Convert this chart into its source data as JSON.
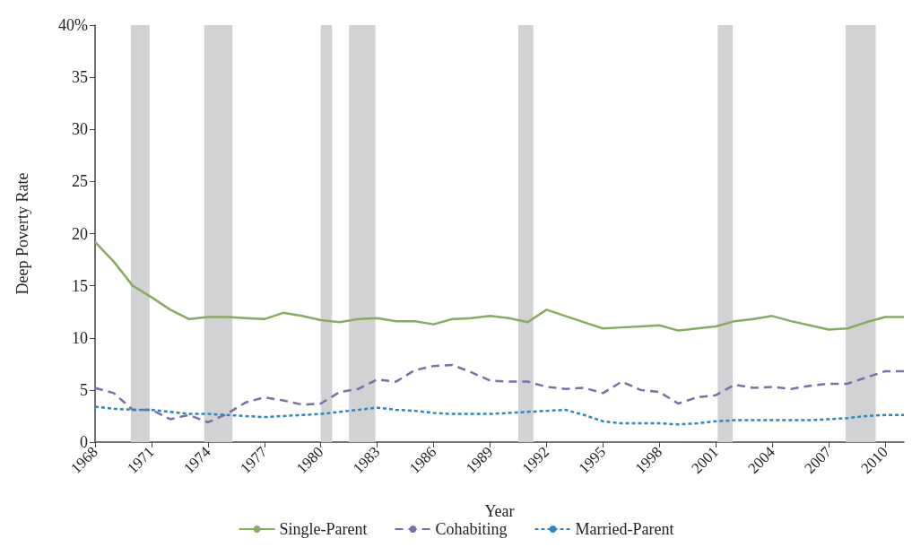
{
  "chart_data": {
    "type": "line",
    "xlabel": "Year",
    "ylabel": "Deep Poverty Rate",
    "x": [
      1968,
      1969,
      1970,
      1971,
      1972,
      1973,
      1974,
      1975,
      1976,
      1977,
      1978,
      1979,
      1980,
      1981,
      1982,
      1983,
      1984,
      1985,
      1986,
      1987,
      1988,
      1989,
      1990,
      1991,
      1992,
      1993,
      1994,
      1995,
      1996,
      1997,
      1998,
      1999,
      2000,
      2001,
      2002,
      2003,
      2004,
      2005,
      2006,
      2007,
      2008,
      2009,
      2010,
      2011
    ],
    "series": [
      {
        "name": "Single-Parent",
        "color": "#8aab5f",
        "line_style": "solid",
        "values": [
          19.2,
          17.3,
          15.0,
          13.9,
          12.7,
          11.8,
          12.0,
          12.0,
          11.9,
          11.8,
          12.4,
          12.1,
          11.7,
          11.5,
          11.8,
          11.9,
          11.6,
          11.6,
          11.3,
          11.8,
          11.9,
          12.1,
          11.9,
          11.5,
          12.7,
          12.1,
          11.5,
          10.9,
          11.0,
          11.1,
          11.2,
          10.7,
          10.9,
          11.1,
          11.6,
          11.8,
          12.1,
          11.6,
          11.2,
          10.8,
          10.9,
          11.5,
          12.0,
          12.0
        ]
      },
      {
        "name": "Cohabiting",
        "color": "#7b6fa6",
        "line_style": "dashed",
        "values": [
          5.2,
          4.7,
          3.1,
          3.1,
          2.2,
          2.6,
          1.9,
          2.7,
          3.8,
          4.3,
          4.0,
          3.6,
          3.7,
          4.8,
          5.1,
          6.0,
          5.8,
          6.9,
          7.3,
          7.4,
          6.7,
          5.9,
          5.8,
          5.8,
          5.3,
          5.1,
          5.2,
          4.7,
          5.8,
          5.0,
          4.8,
          3.7,
          4.3,
          4.5,
          5.5,
          5.2,
          5.3,
          5.1,
          5.4,
          5.6,
          5.6,
          6.2,
          6.8,
          6.8
        ]
      },
      {
        "name": "Married-Parent",
        "color": "#2e86c1",
        "line_style": "dotted",
        "values": [
          3.4,
          3.2,
          3.1,
          3.1,
          2.9,
          2.7,
          2.7,
          2.6,
          2.5,
          2.4,
          2.5,
          2.6,
          2.7,
          2.9,
          3.1,
          3.3,
          3.1,
          3.0,
          2.8,
          2.7,
          2.7,
          2.7,
          2.8,
          2.9,
          3.0,
          3.1,
          2.6,
          2.0,
          1.8,
          1.8,
          1.8,
          1.7,
          1.8,
          2.0,
          2.1,
          2.1,
          2.1,
          2.1,
          2.1,
          2.2,
          2.3,
          2.5,
          2.6,
          2.6
        ]
      }
    ],
    "xlim": [
      1968,
      2011
    ],
    "xticks": [
      1968,
      1971,
      1974,
      1977,
      1980,
      1983,
      1986,
      1989,
      1992,
      1995,
      1998,
      2001,
      2004,
      2007,
      2010
    ],
    "ylim": [
      0,
      40
    ],
    "yticks": [
      0,
      5,
      10,
      15,
      20,
      25,
      30,
      35,
      {
        "value": 40,
        "label": "40%"
      }
    ],
    "bands": [
      {
        "axis": "x",
        "from": 1969.9,
        "to": 1970.9,
        "color": "#d1d2d4"
      },
      {
        "axis": "x",
        "from": 1973.8,
        "to": 1975.3,
        "color": "#d1d2d4"
      },
      {
        "axis": "x",
        "from": 1980.0,
        "to": 1980.6,
        "color": "#d1d2d4"
      },
      {
        "axis": "x",
        "from": 1981.5,
        "to": 1982.9,
        "color": "#d1d2d4"
      },
      {
        "axis": "x",
        "from": 1990.5,
        "to": 1991.3,
        "color": "#d1d2d4"
      },
      {
        "axis": "x",
        "from": 2001.1,
        "to": 2001.9,
        "color": "#d1d2d4"
      },
      {
        "axis": "x",
        "from": 2007.9,
        "to": 2009.5,
        "color": "#d1d2d4"
      }
    ],
    "grid": false,
    "legend": "bottom",
    "marker": "none"
  }
}
